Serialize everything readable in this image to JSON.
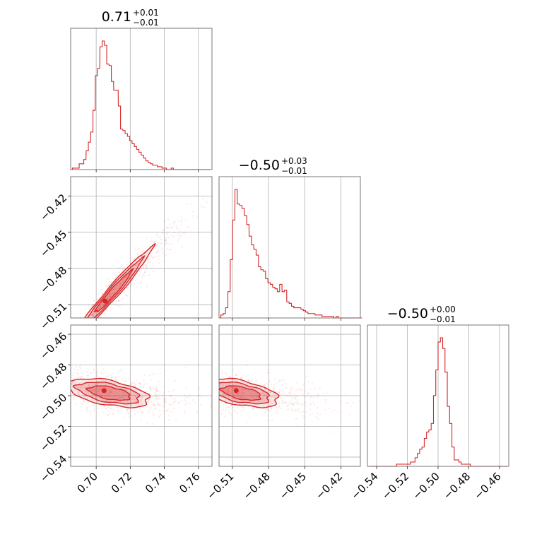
{
  "chart_data": {
    "type": "corner",
    "color": "#d62728",
    "parameters": [
      {
        "title_value": "0.71",
        "title_plus": "+0.01",
        "title_minus": "−0.01",
        "range": [
          0.685,
          0.768
        ],
        "ticks": [
          0.7,
          0.72,
          0.74,
          0.76
        ],
        "tick_labels": [
          "0.70",
          "0.72",
          "0.74",
          "0.76"
        ]
      },
      {
        "title_value": "−0.50",
        "title_plus": "+0.03",
        "title_minus": "−0.01",
        "range": [
          -0.521,
          -0.404
        ],
        "ticks": [
          -0.51,
          -0.48,
          -0.45,
          -0.42
        ],
        "tick_labels": [
          "−0.51",
          "−0.48",
          "−0.45",
          "−0.42"
        ]
      },
      {
        "title_value": "−0.50",
        "title_plus": "+0.00",
        "title_minus": "−0.01",
        "range": [
          -0.546,
          -0.454
        ],
        "ticks": [
          -0.54,
          -0.52,
          -0.5,
          -0.48,
          -0.46
        ],
        "tick_labels": [
          "−0.54",
          "−0.52",
          "−0.50",
          "−0.48",
          "−0.46"
        ]
      }
    ],
    "marginals": [
      {
        "bins": [
          0.686,
          0.6873,
          0.6887,
          0.69,
          0.6914,
          0.6927,
          0.6941,
          0.6954,
          0.6968,
          0.6981,
          0.6995,
          0.7008,
          0.7022,
          0.7035,
          0.7049,
          0.7062,
          0.7076,
          0.7089,
          0.7103,
          0.7116,
          0.713,
          0.7143,
          0.7157,
          0.717,
          0.7184,
          0.7197,
          0.7211,
          0.7224,
          0.7238,
          0.7251,
          0.7265,
          0.7278,
          0.7292,
          0.7305,
          0.7319,
          0.7332,
          0.7346,
          0.7359,
          0.7373,
          0.7386,
          0.74,
          0.7413,
          0.7427,
          0.744,
          0.7454,
          0.7467,
          0.7481,
          0.7494,
          0.7508,
          0.7521,
          0.7535,
          0.7548,
          0.7562,
          0.7575,
          0.7589,
          0.7602,
          0.7616,
          0.7629,
          0.7643,
          0.7656
        ],
        "counts": [
          1,
          1,
          1,
          4,
          4,
          7,
          13,
          19,
          26,
          41,
          65,
          70,
          85,
          89,
          86,
          73,
          72,
          61,
          55,
          55,
          44,
          28,
          27,
          25,
          23,
          20,
          18,
          16,
          14,
          12,
          10,
          8,
          6,
          5,
          4,
          3,
          3,
          2,
          2,
          1,
          1,
          0,
          0,
          1,
          0,
          0,
          0,
          0,
          0,
          0,
          0,
          0,
          0,
          0,
          0,
          0,
          0,
          0,
          0,
          0
        ]
      },
      {
        "bins": [
          -0.5195,
          -0.5176,
          -0.5156,
          -0.5137,
          -0.5117,
          -0.5098,
          -0.5078,
          -0.5059,
          -0.5039,
          -0.502,
          -0.5,
          -0.4981,
          -0.4961,
          -0.4942,
          -0.4922,
          -0.4903,
          -0.4883,
          -0.4864,
          -0.4844,
          -0.4825,
          -0.4805,
          -0.4786,
          -0.4766,
          -0.4747,
          -0.4727,
          -0.4708,
          -0.4688,
          -0.4669,
          -0.4649,
          -0.463,
          -0.461,
          -0.4591,
          -0.4571,
          -0.4552,
          -0.4532,
          -0.4513,
          -0.4493,
          -0.4474,
          -0.4454,
          -0.4435,
          -0.4415,
          -0.4396,
          -0.4376,
          -0.4357,
          -0.4337,
          -0.4318,
          -0.4298,
          -0.4279,
          -0.4259,
          -0.424,
          -0.422,
          -0.4201,
          -0.4181,
          -0.4162,
          -0.4142,
          -0.4123,
          -0.4103,
          -0.4084,
          -0.4064,
          -0.4045
        ],
        "counts": [
          2,
          3,
          7,
          18,
          40,
          67,
          88,
          78,
          77,
          75,
          70,
          64,
          56,
          50,
          47,
          43,
          35,
          33,
          32,
          27,
          24,
          23,
          21,
          20,
          18,
          23,
          18,
          19,
          11,
          10,
          8,
          7,
          7,
          7,
          6,
          5,
          4,
          3,
          3,
          3,
          2,
          2,
          2,
          1,
          1,
          1,
          1,
          1,
          0,
          1,
          0,
          0,
          0,
          0,
          0,
          0,
          0,
          0,
          0,
          0
        ]
      },
      {
        "bins": [
          -0.545,
          -0.5435,
          -0.542,
          -0.5405,
          -0.539,
          -0.5375,
          -0.536,
          -0.5345,
          -0.533,
          -0.5315,
          -0.53,
          -0.5285,
          -0.527,
          -0.5255,
          -0.524,
          -0.5225,
          -0.521,
          -0.5195,
          -0.518,
          -0.5165,
          -0.515,
          -0.5135,
          -0.512,
          -0.5105,
          -0.509,
          -0.5075,
          -0.506,
          -0.5045,
          -0.503,
          -0.5015,
          -0.5,
          -0.4985,
          -0.497,
          -0.4955,
          -0.494,
          -0.4925,
          -0.491,
          -0.4895,
          -0.488,
          -0.4865,
          -0.485,
          -0.4835,
          -0.482,
          -0.4805,
          -0.479,
          -0.4775,
          -0.476,
          -0.4745,
          -0.473,
          -0.4715,
          -0.47,
          -0.4685,
          -0.467,
          -0.4655,
          -0.464,
          -0.4625,
          -0.461,
          -0.4595,
          -0.458,
          -0.4565
        ],
        "counts": [
          0,
          0,
          0,
          0,
          0,
          0,
          0,
          0,
          0,
          0,
          0,
          0,
          1,
          1,
          1,
          1,
          1,
          1,
          2,
          2,
          4,
          6,
          8,
          9,
          13,
          16,
          17,
          20,
          33,
          45,
          58,
          60,
          55,
          44,
          28,
          20,
          9,
          3,
          3,
          2,
          1,
          1,
          1,
          1,
          0,
          0,
          0,
          0,
          0,
          0,
          0,
          0,
          0,
          0,
          0,
          0,
          0,
          0,
          0,
          0
        ]
      }
    ],
    "pairs": [
      {
        "x_param": 0,
        "y_param": 1,
        "mean": [
          0.709,
          -0.501
        ],
        "sd": [
          0.0095,
          0.0152
        ],
        "corr": 0.97,
        "levels": [
          1.0,
          1.5,
          2.0
        ]
      },
      {
        "x_param": 0,
        "y_param": 2,
        "mean": [
          0.709,
          -0.4985
        ],
        "sd": [
          0.011,
          0.0045
        ],
        "corr": -0.45,
        "levels": [
          1.0,
          1.5,
          2.0
        ]
      },
      {
        "x_param": 1,
        "y_param": 2,
        "mean": [
          -0.501,
          -0.4985
        ],
        "sd": [
          0.0145,
          0.0045
        ],
        "corr": -0.45,
        "levels": [
          1.0,
          1.5,
          2.0
        ]
      }
    ]
  }
}
